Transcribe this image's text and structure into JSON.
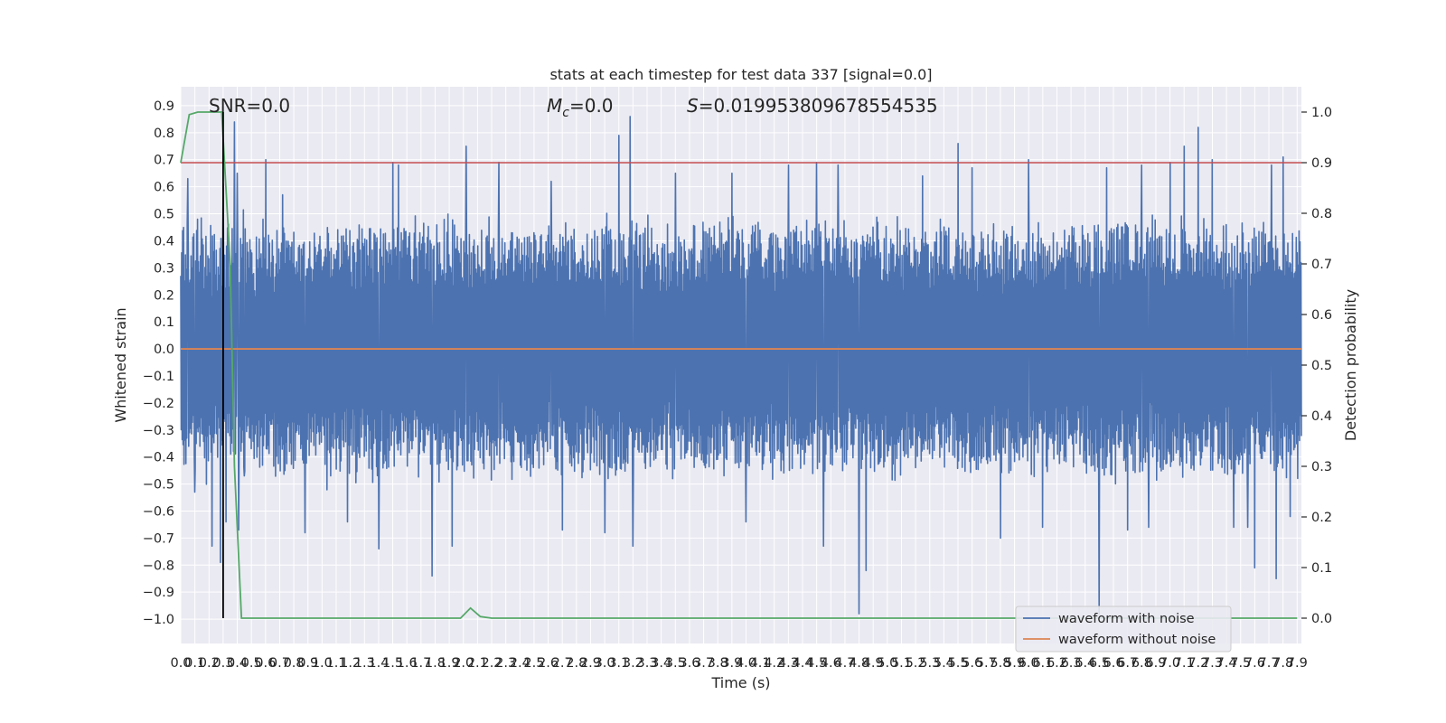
{
  "chart_data": {
    "type": "line",
    "title": "stats at each timestep for test data 337 [signal=0.0]",
    "xlabel": "Time (s)",
    "ylabel": "Whitened strain",
    "y2label": "Detection probability",
    "xlim": [
      0.0,
      7.93
    ],
    "ylim": [
      -1.09,
      0.97
    ],
    "y2lim": [
      -0.05,
      1.05
    ],
    "grid": true,
    "x_ticks": [
      "0.0",
      "0.1",
      "0.2",
      "0.3",
      "0.4",
      "0.5",
      "0.6",
      "0.7",
      "0.8",
      "0.9",
      "1.0",
      "1.1",
      "1.2",
      "1.3",
      "1.4",
      "1.5",
      "1.6",
      "1.7",
      "1.8",
      "1.9",
      "2.0",
      "2.1",
      "2.2",
      "2.3",
      "2.4",
      "2.5",
      "2.6",
      "2.7",
      "2.8",
      "2.9",
      "3.0",
      "3.1",
      "3.2",
      "3.3",
      "3.4",
      "3.5",
      "3.6",
      "3.7",
      "3.8",
      "3.9",
      "4.0",
      "4.1",
      "4.2",
      "4.3",
      "4.4",
      "4.5",
      "4.6",
      "4.7",
      "4.8",
      "4.9",
      "5.0",
      "5.1",
      "5.2",
      "5.3",
      "5.4",
      "5.5",
      "5.6",
      "5.7",
      "5.8",
      "5.9",
      "6.0",
      "6.1",
      "6.2",
      "6.3",
      "6.4",
      "6.5",
      "6.6",
      "6.7",
      "6.8",
      "6.9",
      "7.0",
      "7.1",
      "7.2",
      "7.3",
      "7.4",
      "7.5",
      "7.6",
      "7.7",
      "7.8",
      "7.9"
    ],
    "y_ticks": [
      "0.9",
      "0.8",
      "0.7",
      "0.6",
      "0.5",
      "0.4",
      "0.3",
      "0.2",
      "0.1",
      "0.0",
      "−0.1",
      "−0.2",
      "−0.3",
      "−0.4",
      "−0.5",
      "−0.6",
      "−0.7",
      "−0.8",
      "−0.9",
      "−1.0"
    ],
    "y2_ticks": [
      "1.0",
      "0.9",
      "0.8",
      "0.7",
      "0.6",
      "0.5",
      "0.4",
      "0.3",
      "0.2",
      "0.1",
      "0.0"
    ],
    "annotations": {
      "snr": "SNR=0.0",
      "mc_symbol": "M",
      "mc_subscript": "c",
      "mc_value": "=0.0",
      "s_symbol": "S",
      "s_value": "=0.019953809678554535"
    },
    "legend": {
      "position": "lower-right",
      "entries": [
        "waveform with noise",
        "waveform without noise"
      ]
    },
    "noise_series": {
      "name": "waveform with noise",
      "color": "#4c72b0",
      "typical_range": [
        -0.45,
        0.45
      ],
      "extremes": [
        {
          "t": 0.05,
          "v": 0.63
        },
        {
          "t": 0.1,
          "v": -0.53
        },
        {
          "t": 0.12,
          "v": 0.48
        },
        {
          "t": 0.22,
          "v": -0.73
        },
        {
          "t": 0.28,
          "v": -0.79
        },
        {
          "t": 0.3,
          "v": 0.61
        },
        {
          "t": 0.32,
          "v": -0.64
        },
        {
          "t": 0.38,
          "v": 0.84
        },
        {
          "t": 0.41,
          "v": -0.67
        },
        {
          "t": 0.45,
          "v": -0.47
        },
        {
          "t": 0.4,
          "v": 0.65
        },
        {
          "t": 0.6,
          "v": 0.7
        },
        {
          "t": 0.72,
          "v": 0.57
        },
        {
          "t": 0.88,
          "v": -0.68
        },
        {
          "t": 1.18,
          "v": -0.64
        },
        {
          "t": 1.4,
          "v": -0.74
        },
        {
          "t": 1.5,
          "v": 0.69
        },
        {
          "t": 1.54,
          "v": 0.68
        },
        {
          "t": 1.78,
          "v": -0.84
        },
        {
          "t": 1.92,
          "v": -0.73
        },
        {
          "t": 2.02,
          "v": 0.75
        },
        {
          "t": 2.25,
          "v": 0.69
        },
        {
          "t": 2.62,
          "v": 0.62
        },
        {
          "t": 2.7,
          "v": -0.67
        },
        {
          "t": 3.0,
          "v": -0.68
        },
        {
          "t": 3.1,
          "v": 0.79
        },
        {
          "t": 3.18,
          "v": 0.86
        },
        {
          "t": 3.2,
          "v": -0.73
        },
        {
          "t": 3.5,
          "v": 0.65
        },
        {
          "t": 3.9,
          "v": 0.65
        },
        {
          "t": 4.0,
          "v": -0.64
        },
        {
          "t": 4.3,
          "v": 0.68
        },
        {
          "t": 4.5,
          "v": 0.69
        },
        {
          "t": 4.55,
          "v": -0.73
        },
        {
          "t": 4.65,
          "v": 0.68
        },
        {
          "t": 4.8,
          "v": -0.98
        },
        {
          "t": 4.85,
          "v": -0.82
        },
        {
          "t": 5.25,
          "v": 0.64
        },
        {
          "t": 5.5,
          "v": 0.76
        },
        {
          "t": 5.6,
          "v": 0.67
        },
        {
          "t": 5.8,
          "v": -0.7
        },
        {
          "t": 6.0,
          "v": 0.7
        },
        {
          "t": 6.1,
          "v": -0.66
        },
        {
          "t": 6.5,
          "v": -0.98
        },
        {
          "t": 6.55,
          "v": 0.67
        },
        {
          "t": 6.7,
          "v": -0.67
        },
        {
          "t": 6.8,
          "v": 0.68
        },
        {
          "t": 6.85,
          "v": -0.66
        },
        {
          "t": 7.0,
          "v": 0.69
        },
        {
          "t": 7.1,
          "v": 0.75
        },
        {
          "t": 7.2,
          "v": 0.82
        },
        {
          "t": 7.3,
          "v": 0.7
        },
        {
          "t": 7.45,
          "v": -0.66
        },
        {
          "t": 7.55,
          "v": -0.66
        },
        {
          "t": 7.6,
          "v": -0.81
        },
        {
          "t": 7.72,
          "v": 0.68
        },
        {
          "t": 7.75,
          "v": -0.85
        },
        {
          "t": 7.8,
          "v": 0.71
        },
        {
          "t": 7.85,
          "v": -0.62
        }
      ]
    },
    "clean_series": {
      "name": "waveform without noise",
      "color": "#dd8452",
      "value": 0.0
    },
    "probability_series": {
      "color": "#55a868",
      "x": [
        0.0,
        0.06,
        0.12,
        0.2,
        0.29,
        0.35,
        0.38,
        0.43,
        1.0,
        1.98,
        2.05,
        2.12,
        2.2,
        3.0,
        5.0,
        7.5,
        7.9
      ],
      "y": [
        0.9,
        0.995,
        1.0,
        1.0,
        1.0,
        0.7,
        0.3,
        0.0,
        0.0,
        0.0,
        0.02,
        0.003,
        0.0,
        0.0,
        0.0,
        0.0,
        0.0
      ]
    },
    "threshold": {
      "color": "#c44e52",
      "value": 0.9
    },
    "marker": {
      "color": "#000000",
      "t": 0.3
    }
  }
}
